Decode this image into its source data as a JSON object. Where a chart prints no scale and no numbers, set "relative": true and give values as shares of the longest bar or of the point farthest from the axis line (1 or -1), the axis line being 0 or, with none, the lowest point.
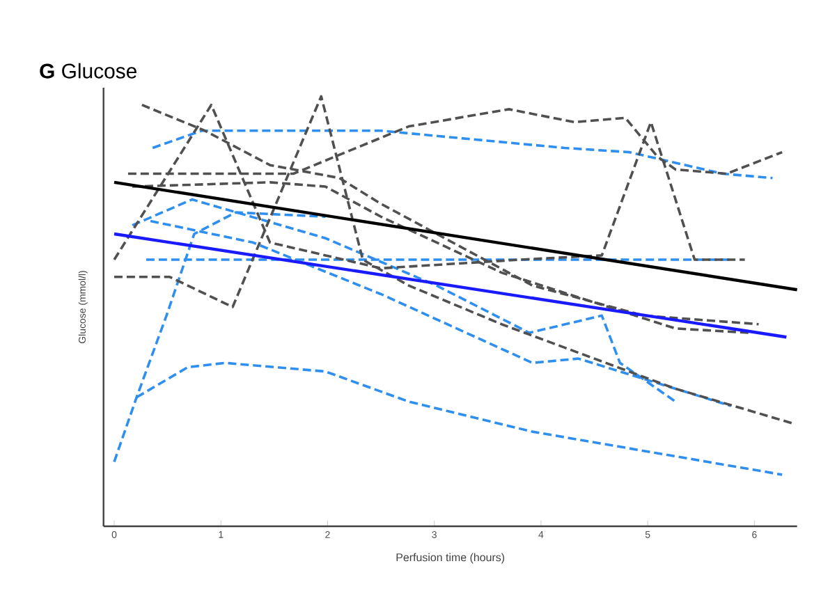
{
  "chart_data": {
    "type": "line",
    "title": "**G** Glucose",
    "xlabel": "Perfusion time (hours)",
    "ylabel": "Glucose (mmol/l)",
    "relative": true,
    "xlim": [
      -0.1,
      6.4
    ],
    "xticks": [
      0,
      1,
      2,
      3,
      4,
      5,
      6
    ],
    "series": [
      {
        "color": "#2e8ff0",
        "line_style": "dashed",
        "x": [
          0.36,
          0.82,
          1.98,
          2.5,
          4.22,
          4.83,
          5.18,
          5.7,
          6.17
        ],
        "values": [
          0.88,
          0.92,
          0.92,
          0.92,
          0.88,
          0.87,
          0.85,
          0.82,
          0.81
        ]
      },
      {
        "color": "#2e8ff0",
        "line_style": "dashed",
        "x": [
          0,
          0.21,
          0.49,
          0.75,
          1.14,
          1.98
        ],
        "values": [
          0.15,
          0.3,
          0.49,
          0.68,
          0.73,
          0.72
        ]
      },
      {
        "color": "#2e8ff0",
        "line_style": "dashed",
        "x": [
          0.3,
          5.78
        ],
        "values": [
          0.62,
          0.62
        ]
      },
      {
        "color": "#2e8ff0",
        "line_style": "dashed",
        "x": [
          0.17,
          0.73,
          1.98,
          3.02,
          3.89,
          4.57,
          4.74,
          5.26
        ],
        "values": [
          0.7,
          0.76,
          0.67,
          0.56,
          0.45,
          0.49,
          0.38,
          0.29
        ]
      },
      {
        "color": "#2e8ff0",
        "line_style": "dashed",
        "x": [
          0.34,
          1.3,
          2.5,
          3.92,
          4.35,
          5.78
        ],
        "values": [
          0.71,
          0.66,
          0.54,
          0.38,
          0.39,
          0.28
        ]
      },
      {
        "color": "#2e8ff0",
        "line_style": "dashed",
        "x": [
          0.21,
          0.69,
          1.04,
          1.98,
          2.76,
          3.92,
          6.26
        ],
        "values": [
          0.3,
          0.37,
          0.38,
          0.36,
          0.29,
          0.22,
          0.12
        ]
      },
      {
        "color": "#505050",
        "line_style": "dashed",
        "x": [
          0.26,
          0.85,
          1.46,
          2.11,
          2.5,
          3.92,
          4.96,
          6.04
        ],
        "values": [
          0.98,
          0.92,
          0.84,
          0.81,
          0.75,
          0.56,
          0.49,
          0.47
        ]
      },
      {
        "color": "#505050",
        "line_style": "dashed",
        "x": [
          0,
          0.91,
          1.46,
          2.5,
          3.8,
          4.57,
          5.03,
          5.44,
          5.91
        ],
        "values": [
          0.62,
          0.98,
          0.66,
          0.6,
          0.62,
          0.63,
          0.94,
          0.62,
          0.62
        ]
      },
      {
        "color": "#505050",
        "line_style": "dashed",
        "x": [
          0,
          0.52,
          1.11,
          1.94,
          2.33,
          2.76,
          3.63,
          5.26,
          6.35
        ],
        "values": [
          0.58,
          0.58,
          0.51,
          1.0,
          0.62,
          0.56,
          0.47,
          0.32,
          0.24
        ]
      },
      {
        "color": "#505050",
        "line_style": "dashed",
        "x": [
          0.13,
          1.68,
          2.76,
          3.7,
          4.31,
          4.79,
          5.09,
          5.26,
          5.74,
          6.26
        ],
        "values": [
          0.82,
          0.82,
          0.93,
          0.97,
          0.94,
          0.95,
          0.86,
          0.83,
          0.82,
          0.87
        ]
      },
      {
        "color": "#505050",
        "line_style": "dashed",
        "x": [
          0.17,
          1.46,
          1.98,
          2.5,
          3.63,
          5.26,
          5.96
        ],
        "values": [
          0.79,
          0.8,
          0.79,
          0.72,
          0.59,
          0.46,
          0.45
        ]
      },
      {
        "color": "#000000",
        "line_style": "solid",
        "x": [
          0,
          6.4
        ],
        "values": [
          0.8,
          0.55
        ]
      },
      {
        "color": "#1a1aff",
        "line_style": "solid",
        "x": [
          0,
          6.3
        ],
        "values": [
          0.68,
          0.44
        ]
      }
    ]
  }
}
